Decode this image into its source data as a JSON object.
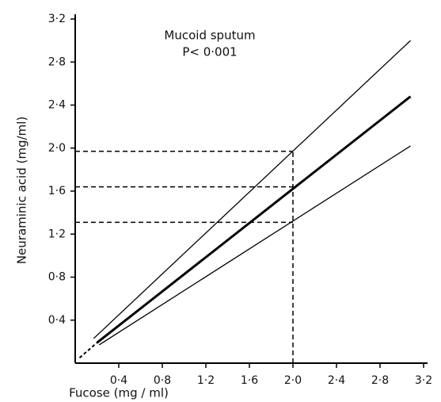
{
  "chart_data": {
    "type": "line",
    "annotation": [
      "Mucoid sputum",
      "P< 0·001"
    ],
    "xlabel": "Fucose (mg / ml)",
    "ylabel": "Neuraminic acid (mg/ml)",
    "xlim": [
      0,
      3.2
    ],
    "ylim": [
      0,
      3.2
    ],
    "xticks": [
      {
        "value": 0.4,
        "label": "0·4"
      },
      {
        "value": 0.8,
        "label": "0·8"
      },
      {
        "value": 1.2,
        "label": "1·2"
      },
      {
        "value": 1.6,
        "label": "1·6"
      },
      {
        "value": 2.0,
        "label": "2·0"
      },
      {
        "value": 2.4,
        "label": "2·4"
      },
      {
        "value": 2.8,
        "label": "2·8"
      },
      {
        "value": 3.2,
        "label": "3·2"
      }
    ],
    "yticks": [
      {
        "value": 0.4,
        "label": "0·4"
      },
      {
        "value": 0.8,
        "label": "0·8"
      },
      {
        "value": 1.2,
        "label": "1·2"
      },
      {
        "value": 1.6,
        "label": "1·6"
      },
      {
        "value": 2.0,
        "label": "2·0"
      },
      {
        "value": 2.4,
        "label": "2·4"
      },
      {
        "value": 2.8,
        "label": "2·8"
      },
      {
        "value": 3.2,
        "label": "3·2"
      }
    ],
    "series": [
      {
        "color": "#000000",
        "line_width": 1.3,
        "x": [
          0.17,
          3.08
        ],
        "values": [
          0.23,
          3.0
        ]
      },
      {
        "color": "#000000",
        "line_width": 3,
        "x": [
          0.2,
          3.08
        ],
        "values": [
          0.19,
          2.48
        ]
      },
      {
        "color": "#000000",
        "line_width": 1.3,
        "x": [
          0.22,
          3.08
        ],
        "values": [
          0.17,
          2.02
        ]
      },
      {
        "color": "#000000",
        "line_width": 2,
        "dashed": true,
        "x": [
          0.04,
          0.2
        ],
        "values": [
          0.05,
          0.19
        ]
      }
    ],
    "reference_lines": {
      "x": [
        2.0
      ],
      "y": [
        1.97,
        1.64,
        1.31
      ]
    }
  }
}
